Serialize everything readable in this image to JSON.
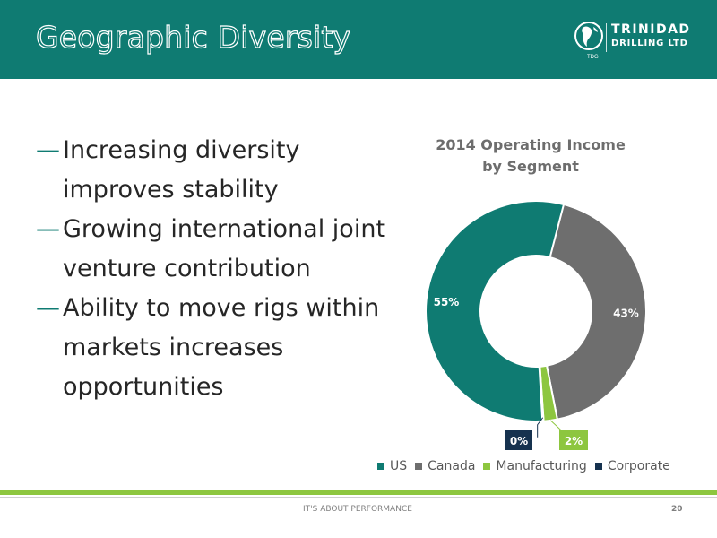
{
  "slide": {
    "title": "Geographic Diversity",
    "bullets": [
      "Increasing diversity improves stability",
      "Growing international joint venture contribution",
      "Ability to move rigs within markets increases opportunities"
    ],
    "bullet_marker": "—",
    "footer": "IT'S ABOUT PERFORMANCE",
    "page_number": "20"
  },
  "logo": {
    "line1": "TRINIDAD",
    "line2": "DRILLING LTD",
    "sub": "TDG"
  },
  "colors": {
    "header": "#0f7b72",
    "US": "#0f7b72",
    "Canada": "#6e6e6e",
    "Manufacturing": "#8dc63f",
    "Corporate": "#16324f",
    "footer_bar": "#8dc63f"
  },
  "chart_data": {
    "type": "pie",
    "donut": true,
    "title": "2014 Operating Income by Segment",
    "title_lines": [
      "2014 Operating Income",
      "by Segment"
    ],
    "categories": [
      "US",
      "Canada",
      "Manufacturing",
      "Corporate"
    ],
    "values": [
      55,
      43,
      2,
      0
    ],
    "data_labels": [
      "55%",
      "43%",
      "2%",
      "0%"
    ],
    "legend_position": "bottom"
  }
}
